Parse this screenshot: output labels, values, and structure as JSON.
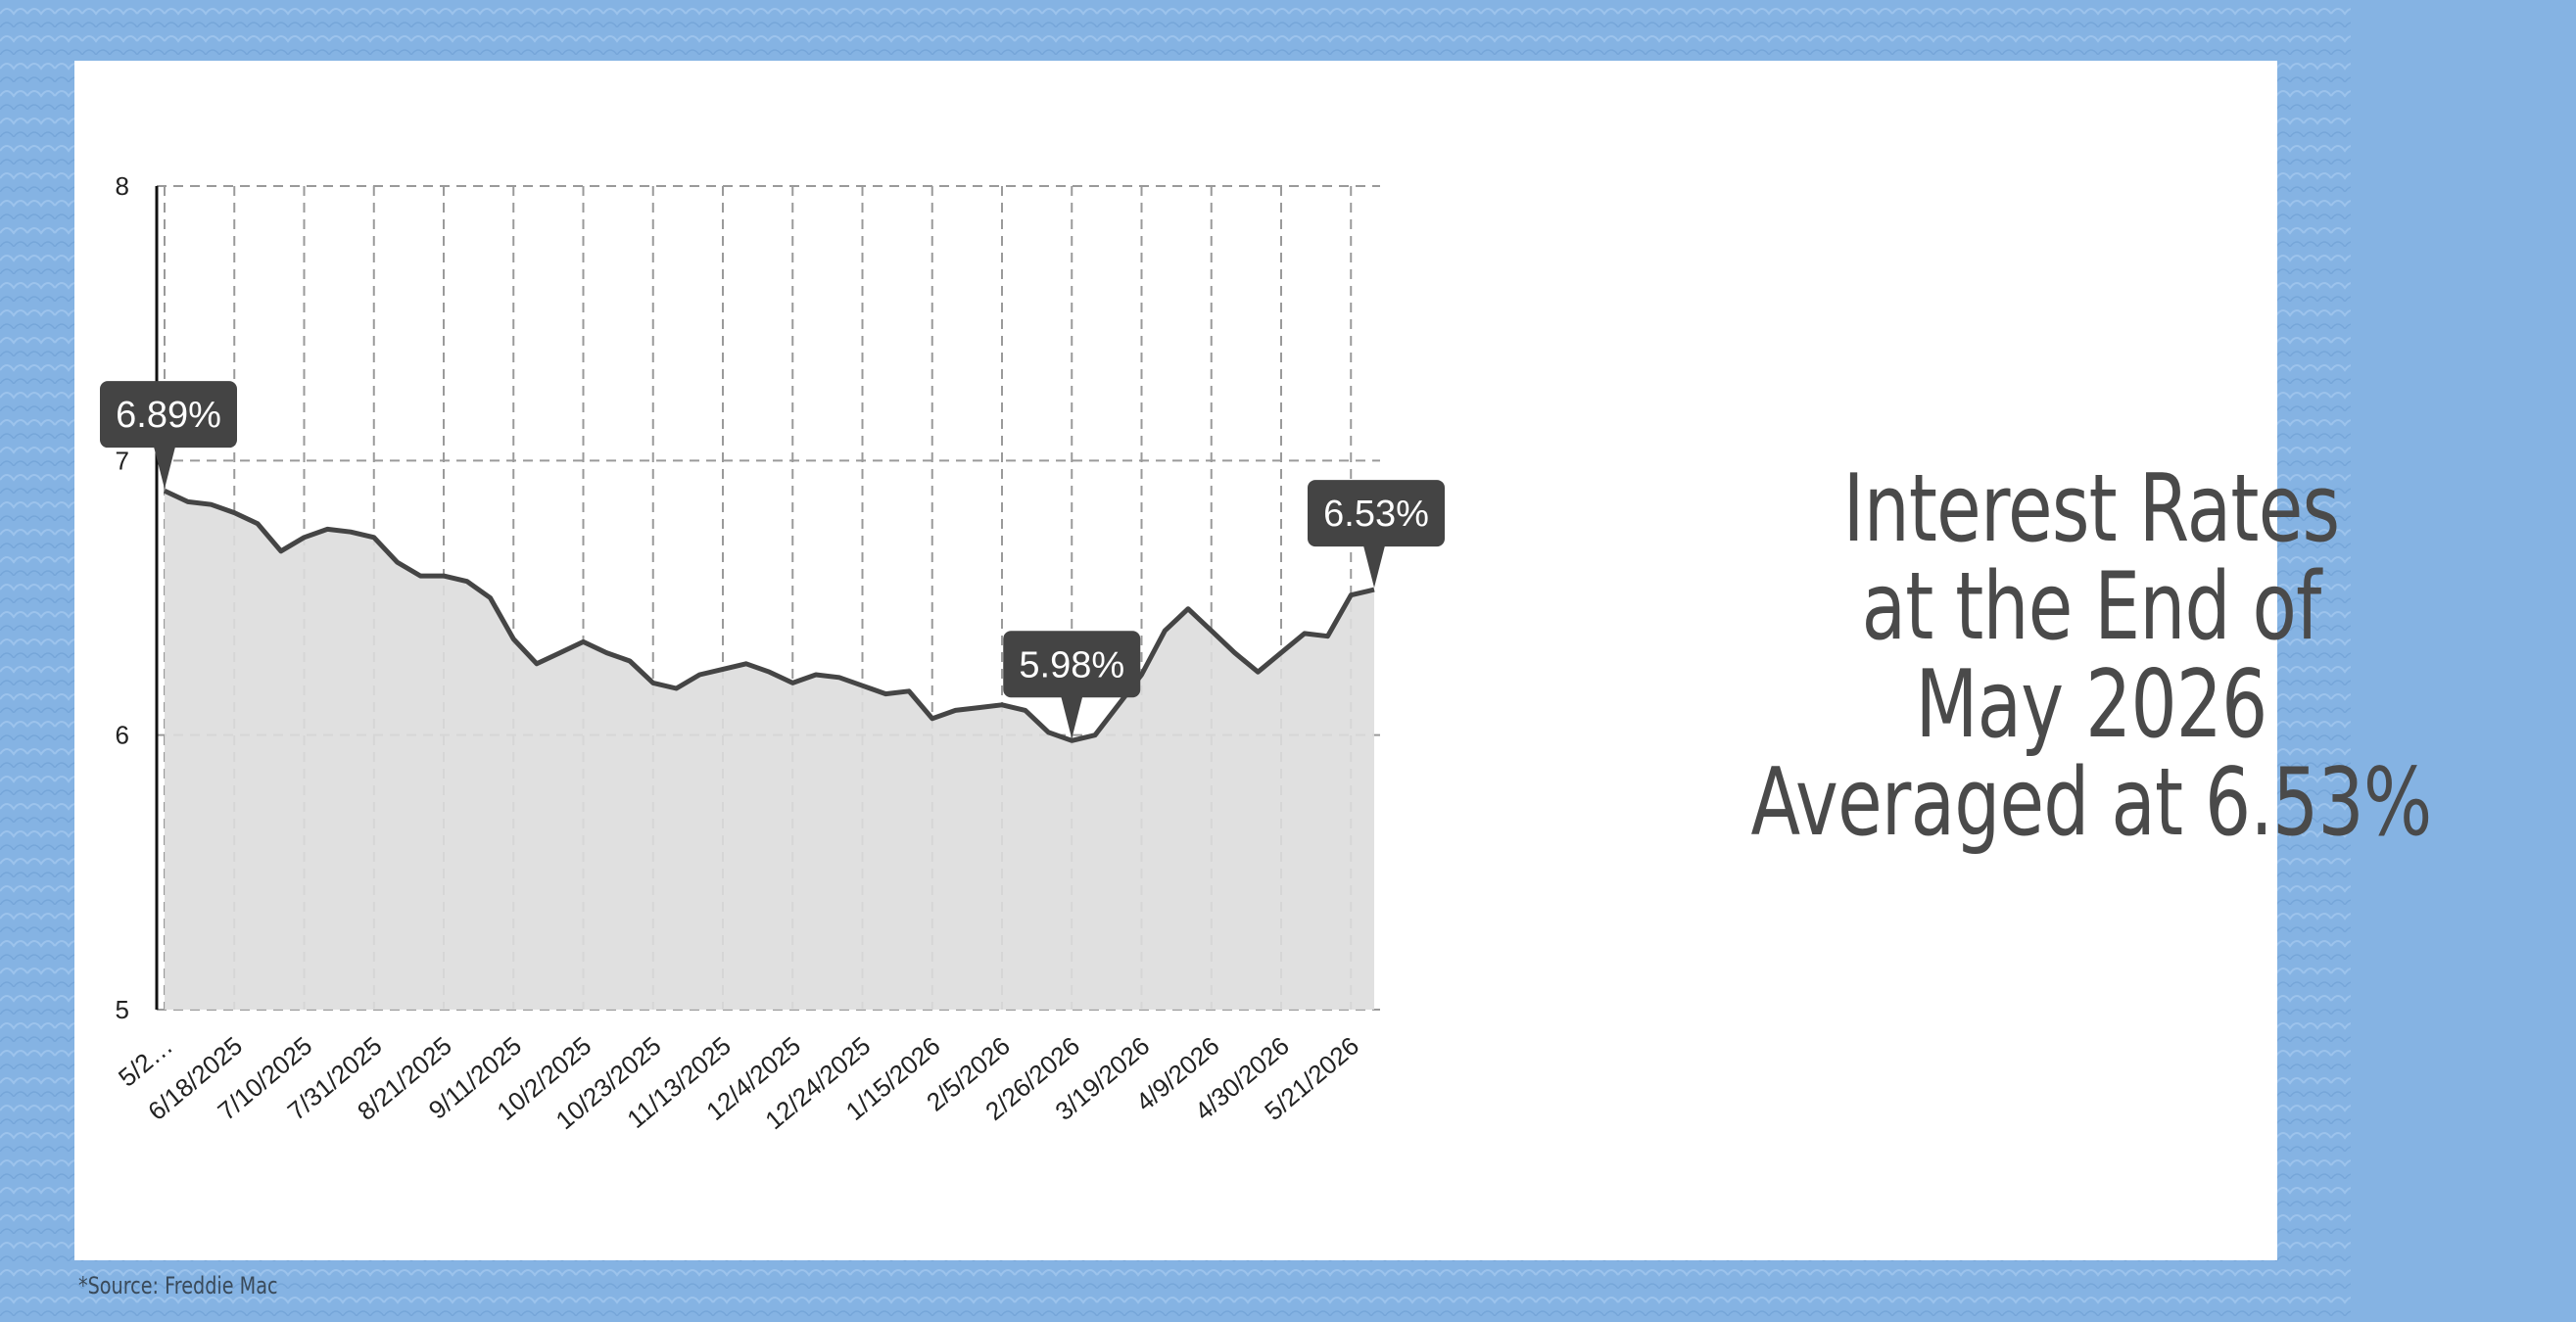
{
  "headline": {
    "line1": "Interest Rates",
    "line2": "at the End of",
    "line3": "May 2026",
    "line4": "Averaged at 6.53%"
  },
  "source": "*Source: Freddie Mac",
  "colors": {
    "background": "#85b3e3",
    "card": "#ffffff",
    "line": "#454545",
    "area": "#dddddd",
    "grid": "#9a9a9a",
    "callout": "#444444"
  },
  "chart_data": {
    "type": "area",
    "title": "",
    "xlabel": "",
    "ylabel": "",
    "ylim": [
      5,
      8
    ],
    "yticks": [
      5,
      6,
      7,
      8
    ],
    "grid": true,
    "x": [
      "5/29/2025",
      "6/5/2025",
      "6/12/2025",
      "6/18/2025",
      "6/26/2025",
      "7/3/2025",
      "7/10/2025",
      "7/17/2025",
      "7/24/2025",
      "7/31/2025",
      "8/7/2025",
      "8/14/2025",
      "8/21/2025",
      "8/28/2025",
      "9/4/2025",
      "9/11/2025",
      "9/18/2025",
      "9/25/2025",
      "10/2/2025",
      "10/9/2025",
      "10/16/2025",
      "10/23/2025",
      "10/30/2025",
      "11/6/2025",
      "11/13/2025",
      "11/20/2025",
      "11/26/2025",
      "12/4/2025",
      "12/11/2025",
      "12/18/2025",
      "12/24/2025",
      "12/31/2025",
      "1/8/2026",
      "1/15/2026",
      "1/22/2026",
      "1/29/2026",
      "2/5/2026",
      "2/12/2026",
      "2/19/2026",
      "2/26/2026",
      "3/5/2026",
      "3/12/2026",
      "3/19/2026",
      "3/26/2026",
      "4/2/2026",
      "4/9/2026",
      "4/16/2026",
      "4/23/2026",
      "4/30/2026",
      "5/7/2026",
      "5/14/2026",
      "5/21/2026",
      "5/28/2026"
    ],
    "x_tick_labels": [
      "5/2…",
      "6/18/2025",
      "7/10/2025",
      "7/31/2025",
      "8/21/2025",
      "9/11/2025",
      "10/2/2025",
      "10/23/2025",
      "11/13/2025",
      "12/4/2025",
      "12/24/2025",
      "1/15/2026",
      "2/5/2026",
      "2/26/2026",
      "3/19/2026",
      "4/9/2026",
      "4/30/2026",
      "5/21/2026"
    ],
    "x_tick_indices": [
      0,
      3,
      6,
      9,
      12,
      15,
      18,
      21,
      24,
      27,
      30,
      33,
      36,
      39,
      42,
      45,
      48,
      51
    ],
    "series": [
      {
        "values": [
          6.89,
          6.85,
          6.84,
          6.81,
          6.77,
          6.67,
          6.72,
          6.75,
          6.74,
          6.72,
          6.63,
          6.58,
          6.58,
          6.56,
          6.5,
          6.35,
          6.26,
          6.3,
          6.34,
          6.3,
          6.27,
          6.19,
          6.17,
          6.22,
          6.24,
          6.26,
          6.23,
          6.19,
          6.22,
          6.21,
          6.18,
          6.15,
          6.16,
          6.06,
          6.09,
          6.1,
          6.11,
          6.09,
          6.01,
          5.98,
          6.0,
          6.11,
          6.22,
          6.38,
          6.46,
          6.38,
          6.3,
          6.23,
          6.3,
          6.37,
          6.36,
          6.51,
          6.53
        ]
      }
    ],
    "annotations": [
      {
        "index": 0,
        "label": "6.89%"
      },
      {
        "index": 39,
        "label": "5.98%"
      },
      {
        "index": 52,
        "label": "6.53%"
      }
    ]
  }
}
